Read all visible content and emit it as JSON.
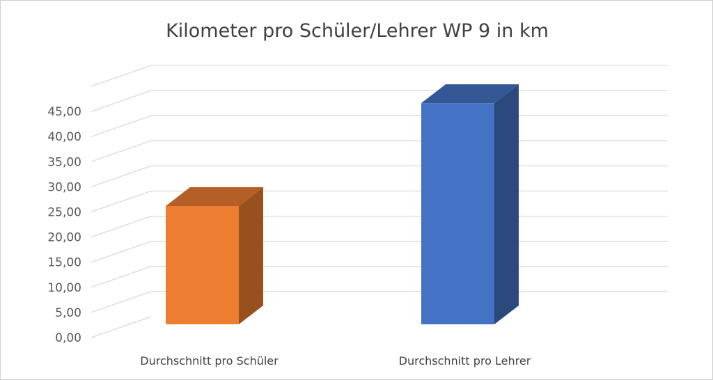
{
  "chart_data": {
    "type": "bar",
    "style": "3d-column",
    "title": "Kilometer pro Schüler/Lehrer WP 9 in km",
    "categories": [
      "Durchschnitt pro Schüler",
      "Durchschnitt pro Lehrer"
    ],
    "values": [
      23.0,
      43.0
    ],
    "colors": [
      "#ED7D31",
      "#4472C4"
    ],
    "ylim": [
      0,
      50
    ],
    "yticks": [
      "0,00",
      "5,00",
      "10,00",
      "15,00",
      "20,00",
      "25,00",
      "30,00",
      "35,00",
      "40,00",
      "45,00"
    ],
    "grid": true,
    "legend": "none"
  }
}
